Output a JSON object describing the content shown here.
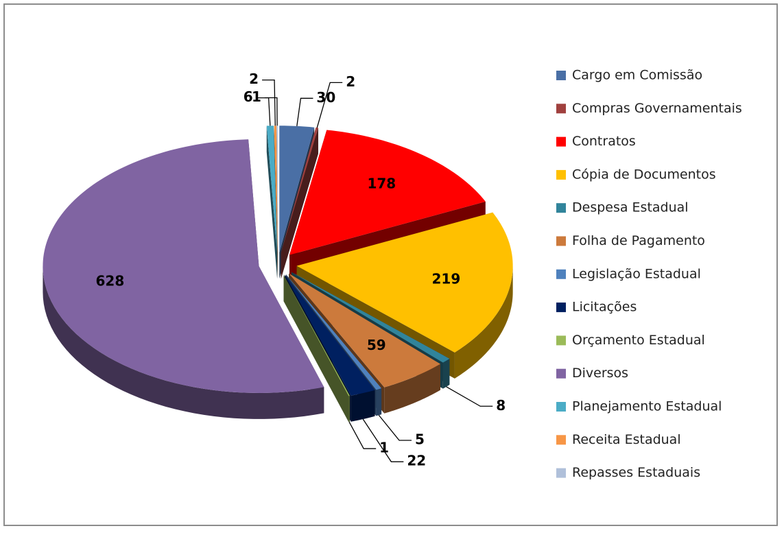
{
  "chart_data": {
    "type": "pie3d",
    "categories": [
      "Cargo em Comissão",
      "Compras Governamentais",
      "Contratos",
      "Cópia de Documentos",
      "Despesa Estadual",
      "Folha de Pagamento",
      "Legislação Estadual",
      "Licitações",
      "Orçamento Estadual",
      "Diversos",
      "Planejamento Estadual",
      "Receita Estadual",
      "Repasses Estaduais"
    ],
    "values": [
      30,
      2,
      178,
      219,
      8,
      59,
      5,
      22,
      1,
      628,
      6,
      2,
      1
    ],
    "colors": [
      "#4a6fa5",
      "#a0403e",
      "#ff0000",
      "#ffc000",
      "#31849b",
      "#cc7a3c",
      "#4f81bd",
      "#002060",
      "#9bbb59",
      "#8064a2",
      "#4bacc6",
      "#f79646",
      "#b0c0da"
    ],
    "legend": "right"
  }
}
